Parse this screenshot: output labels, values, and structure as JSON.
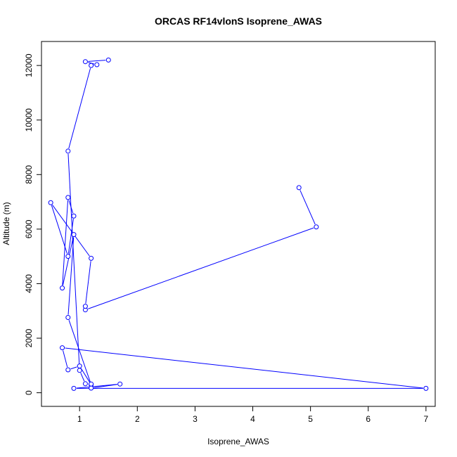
{
  "chart_data": {
    "type": "line",
    "title": "ORCAS RF14vlonS Isoprene_AWAS",
    "xlabel": "Isoprene_AWAS",
    "ylabel": "Altitude (m)",
    "xlim": [
      0.34,
      7.16
    ],
    "ylim": [
      -500,
      12880
    ],
    "x_ticks": [
      1,
      2,
      3,
      4,
      5,
      6,
      7
    ],
    "y_ticks": [
      0,
      2000,
      4000,
      6000,
      8000,
      10000,
      12000
    ],
    "color": "#0000ff",
    "marker": "open-circle",
    "grid": false,
    "series": [
      {
        "x": [
          4.8,
          5.1,
          1.1,
          1.1,
          1.2,
          0.5,
          0.8,
          0.9,
          0.8,
          0.7,
          0.9,
          0.8,
          1.2,
          1.0,
          0.8,
          0.7,
          7.0,
          0.9,
          1.7,
          1.2,
          1.2,
          1.1,
          1.0,
          0.8,
          1.2,
          1.3,
          1.1,
          1.5
        ],
        "y": [
          7520,
          6080,
          3040,
          3170,
          4930,
          6970,
          5000,
          6480,
          7160,
          3840,
          5800,
          2760,
          300,
          980,
          840,
          1650,
          160,
          160,
          320,
          170,
          320,
          330,
          820,
          8860,
          12000,
          12030,
          12140,
          12200
        ]
      }
    ]
  }
}
